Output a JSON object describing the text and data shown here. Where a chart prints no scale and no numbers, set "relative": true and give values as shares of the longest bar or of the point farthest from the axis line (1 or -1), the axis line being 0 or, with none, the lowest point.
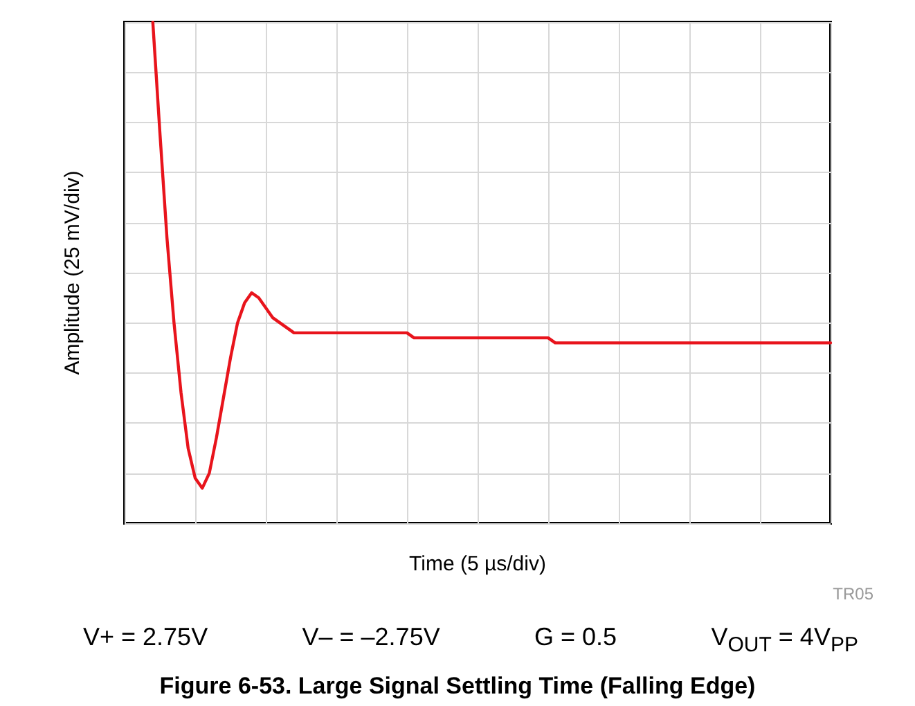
{
  "chart_data": {
    "type": "line",
    "relative": true,
    "title": "Figure 6-53. Large Signal Settling Time (Falling Edge)",
    "xlabel": "Time (5 µs/div)",
    "ylabel": "Amplitude (25 mV/div)",
    "annotations": [
      "TR05",
      "V+ = 2.75V",
      "V– = –2.75V",
      "G = 0.5",
      "V$_{OUT}$ = 4V$_{PP}$"
    ],
    "categories": [
      null,
      null,
      null,
      null,
      null,
      null,
      null,
      null,
      null,
      null,
      null,
      null,
      null,
      null,
      null,
      null,
      null,
      null,
      null,
      null,
      null,
      null,
      null,
      null,
      null,
      null,
      null,
      null,
      null,
      null,
      null,
      null,
      null,
      null,
      null,
      null,
      null,
      null,
      null,
      null,
      null,
      null,
      null,
      null,
      null,
      null,
      null,
      null,
      null,
      null,
      null,
      null,
      null,
      null,
      null,
      null,
      null,
      null,
      null,
      null,
      null,
      null,
      null,
      null,
      null,
      null,
      null,
      null,
      null,
      null,
      null,
      null,
      null,
      null,
      null,
      null,
      null,
      null,
      null,
      null,
      null,
      null,
      null,
      null,
      null,
      null,
      null,
      null,
      null,
      null,
      null,
      null,
      null,
      null,
      null,
      null,
      null,
      null,
      null,
      null,
      null
    ],
    "series": [
      {
        "color": "#e8141c",
        "values": [
          null,
          null,
          null,
          null,
          1.0,
          0.78,
          0.57,
          0.4,
          0.26,
          0.15,
          0.09,
          0.07,
          0.1,
          0.17,
          0.25,
          0.33,
          0.4,
          0.44,
          0.46,
          0.45,
          0.43,
          0.41,
          0.4,
          0.39,
          0.38,
          0.38,
          0.38,
          0.38,
          0.38,
          0.38,
          0.38,
          0.38,
          0.38,
          0.38,
          0.38,
          0.38,
          0.38,
          0.38,
          0.38,
          0.38,
          0.38,
          0.37,
          0.37,
          0.37,
          0.37,
          0.37,
          0.37,
          0.37,
          0.37,
          0.37,
          0.37,
          0.37,
          0.37,
          0.37,
          0.37,
          0.37,
          0.37,
          0.37,
          0.37,
          0.37,
          0.37,
          0.36,
          0.36,
          0.36,
          0.36,
          0.36,
          0.36,
          0.36,
          0.36,
          0.36,
          0.36,
          0.36,
          0.36,
          0.36,
          0.36,
          0.36,
          0.36,
          0.36,
          0.36,
          0.36,
          0.36,
          0.36,
          0.36,
          0.36,
          0.36,
          0.36,
          0.36,
          0.36,
          0.36,
          0.36,
          0.36,
          0.36,
          0.36,
          0.36,
          0.36,
          0.36,
          0.36,
          0.36,
          0.36,
          0.36,
          0.36
        ]
      }
    ],
    "grid": true,
    "line_style": "solid"
  }
}
